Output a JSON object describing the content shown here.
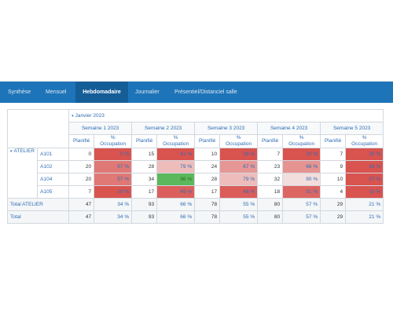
{
  "tabs": [
    {
      "label": "Synthèse",
      "active": false
    },
    {
      "label": "Mensuel",
      "active": false
    },
    {
      "label": "Hebdomadaire",
      "active": true
    },
    {
      "label": "Journalier",
      "active": false
    },
    {
      "label": "Présentiel/Distanciel salle",
      "active": false
    }
  ],
  "table": {
    "month_label": "Janvier 2023",
    "weeks": [
      "Semaine 1 2023",
      "Semaine 2 2023",
      "Semaine 3 2023",
      "Semaine 4 2023",
      "Semaine 5 2023"
    ],
    "col_planifie": "Planifié",
    "col_occupation_line1": "%",
    "col_occupation_line2": "Occupation",
    "group_label": "ATELIER",
    "rows": [
      {
        "label": "A101",
        "cells": [
          {
            "planifie": "0",
            "pct": "0 %"
          },
          {
            "planifie": "15",
            "pct": "41 %"
          },
          {
            "planifie": "10",
            "pct": "29 %"
          },
          {
            "planifie": "7",
            "pct": "20 %"
          },
          {
            "planifie": "7",
            "pct": "20 %"
          }
        ]
      },
      {
        "label": "A102",
        "cells": [
          {
            "planifie": "20",
            "pct": "57 %"
          },
          {
            "planifie": "28",
            "pct": "79 %"
          },
          {
            "planifie": "24",
            "pct": "67 %"
          },
          {
            "planifie": "23",
            "pct": "66 %"
          },
          {
            "planifie": "9",
            "pct": "26 %"
          }
        ]
      },
      {
        "label": "A104",
        "cells": [
          {
            "planifie": "20",
            "pct": "57 %"
          },
          {
            "planifie": "34",
            "pct": "96 %"
          },
          {
            "planifie": "28",
            "pct": "79 %"
          },
          {
            "planifie": "32",
            "pct": "90 %"
          },
          {
            "planifie": "10",
            "pct": "27 %"
          }
        ]
      },
      {
        "label": "A105",
        "cells": [
          {
            "planifie": "7",
            "pct": "20 %"
          },
          {
            "planifie": "17",
            "pct": "49 %"
          },
          {
            "planifie": "17",
            "pct": "48 %"
          },
          {
            "planifie": "18",
            "pct": "51 %"
          },
          {
            "planifie": "4",
            "pct": "10 %"
          }
        ]
      }
    ],
    "totals": [
      {
        "label": "Total ATELIER",
        "cells": [
          {
            "planifie": "47",
            "pct": "34 %"
          },
          {
            "planifie": "93",
            "pct": "66 %"
          },
          {
            "planifie": "78",
            "pct": "55 %"
          },
          {
            "planifie": "80",
            "pct": "57 %"
          },
          {
            "planifie": "29",
            "pct": "21 %"
          }
        ]
      },
      {
        "label": "Total",
        "cells": [
          {
            "planifie": "47",
            "pct": "34 %"
          },
          {
            "planifie": "93",
            "pct": "66 %"
          },
          {
            "planifie": "78",
            "pct": "55 %"
          },
          {
            "planifie": "80",
            "pct": "57 %"
          },
          {
            "planifie": "29",
            "pct": "21 %"
          }
        ]
      }
    ]
  },
  "colors": {
    "header_bar": "#1e74b8",
    "active_tab": "#155d97",
    "heat_low": "#d9534f",
    "heat_high": "#f3dede",
    "heat_full": "#5cb85c"
  }
}
